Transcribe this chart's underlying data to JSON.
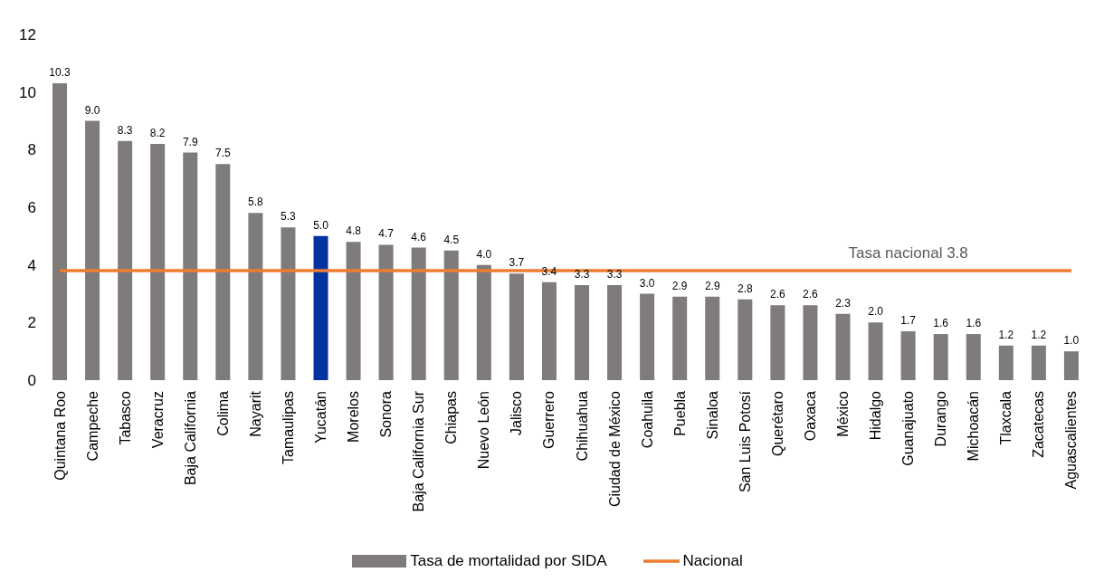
{
  "chart_data": {
    "type": "bar",
    "categories": [
      "Quintana Roo",
      "Campeche",
      "Tabasco",
      "Veracruz",
      "Baja California",
      "Colima",
      "Nayarit",
      "Tamaulipas",
      "Yucatán",
      "Morelos",
      "Sonora",
      "Baja California Sur",
      "Chiapas",
      "Nuevo León",
      "Jalisco",
      "Guerrero",
      "Chihuahua",
      "Ciudad de México",
      "Coahuila",
      "Puebla",
      "Sinaloa",
      "San Luis Potosí",
      "Querétaro",
      "Oaxaca",
      "México",
      "Hidalgo",
      "Guanajuato",
      "Durango",
      "Michoacán",
      "Tlaxcala",
      "Zacatecas",
      "Aguascalientes"
    ],
    "series": [
      {
        "name": "Tasa de mortalidad por SIDA",
        "color": "#7f7b7a",
        "colors": [
          "#7f7b7a",
          "#7f7b7a",
          "#7f7b7a",
          "#7f7b7a",
          "#7f7b7a",
          "#7f7b7a",
          "#7f7b7a",
          "#7f7b7a",
          "#0033a0",
          "#7f7b7a",
          "#7f7b7a",
          "#7f7b7a",
          "#7f7b7a",
          "#7f7b7a",
          "#7f7b7a",
          "#7f7b7a",
          "#7f7b7a",
          "#7f7b7a",
          "#7f7b7a",
          "#7f7b7a",
          "#7f7b7a",
          "#7f7b7a",
          "#7f7b7a",
          "#7f7b7a",
          "#7f7b7a",
          "#7f7b7a",
          "#7f7b7a",
          "#7f7b7a",
          "#7f7b7a",
          "#7f7b7a",
          "#7f7b7a",
          "#7f7b7a"
        ],
        "values": [
          10.3,
          9.0,
          8.3,
          8.2,
          7.9,
          7.5,
          5.8,
          5.3,
          5.0,
          4.8,
          4.7,
          4.6,
          4.5,
          4.0,
          3.7,
          3.4,
          3.3,
          3.3,
          3.0,
          2.9,
          2.9,
          2.8,
          2.6,
          2.6,
          2.3,
          2.0,
          1.7,
          1.6,
          1.6,
          1.2,
          1.2,
          1.0
        ],
        "value_labels": [
          "10.3",
          "9.0",
          "8.3",
          "8.2",
          "7.9",
          "7.5",
          "5.8",
          "5.3",
          "5.0",
          "4.8",
          "4.7",
          "4.6",
          "4.5",
          "4.0",
          "3.7",
          "3.4",
          "3.3",
          "3.3",
          "3.0",
          "2.9",
          "2.9",
          "2.8",
          "2.6",
          "2.6",
          "2.3",
          "2.0",
          "1.7",
          "1.6",
          "1.6",
          "1.2",
          "1.2",
          "1.0"
        ]
      },
      {
        "name": "Nacional",
        "type": "line",
        "color": "#ed7d31",
        "values": [
          3.8,
          3.8,
          3.8,
          3.8,
          3.8,
          3.8,
          3.8,
          3.8,
          3.8,
          3.8,
          3.8,
          3.8,
          3.8,
          3.8,
          3.8,
          3.8,
          3.8,
          3.8,
          3.8,
          3.8,
          3.8,
          3.8,
          3.8,
          3.8,
          3.8,
          3.8,
          3.8,
          3.8,
          3.8,
          3.8,
          3.8,
          3.8
        ]
      }
    ],
    "annotations": [
      "Tasa nacional 3.8"
    ],
    "ylim": [
      0,
      12
    ],
    "yticks": [
      0,
      2,
      4,
      6,
      8,
      10,
      12
    ],
    "grid": false,
    "legend": "bottom",
    "marker": "none"
  }
}
